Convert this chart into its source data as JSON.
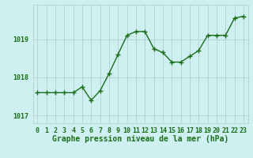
{
  "x": [
    0,
    1,
    2,
    3,
    4,
    5,
    6,
    7,
    8,
    9,
    10,
    11,
    12,
    13,
    14,
    15,
    16,
    17,
    18,
    19,
    20,
    21,
    22,
    23
  ],
  "y": [
    1017.6,
    1017.6,
    1017.6,
    1017.6,
    1017.6,
    1017.75,
    1017.4,
    1017.65,
    1018.1,
    1018.6,
    1019.1,
    1019.2,
    1019.2,
    1018.75,
    1018.65,
    1018.4,
    1018.4,
    1018.55,
    1018.7,
    1019.1,
    1019.1,
    1019.1,
    1019.55,
    1019.6
  ],
  "line_color": "#1a6e1a",
  "marker": "+",
  "marker_size": 4,
  "line_width": 1.0,
  "bg_color": "#cff0f0",
  "grid_color": "#b0c8c8",
  "axis_label_color": "#1a6e1a",
  "tick_label_color": "#1a6e1a",
  "xlabel": "Graphe pression niveau de la mer (hPa)",
  "yticks": [
    1017,
    1018,
    1019
  ],
  "ylim": [
    1016.8,
    1019.9
  ],
  "xlim": [
    -0.5,
    23.5
  ],
  "xlabel_fontsize": 7,
  "tick_fontsize": 6
}
